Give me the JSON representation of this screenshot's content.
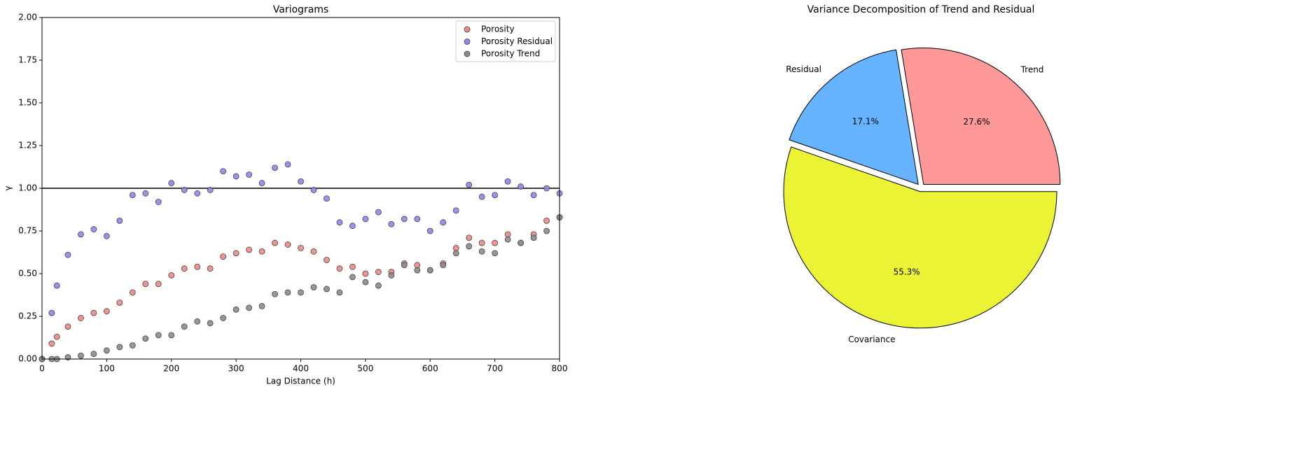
{
  "chart_data": [
    {
      "type": "scatter",
      "title": "Variograms",
      "x_label": "Lag Distance (h)",
      "y_label": "γ",
      "x": [
        0,
        15,
        23,
        40,
        60,
        80,
        100,
        120,
        140,
        160,
        180,
        200,
        220,
        240,
        260,
        280,
        300,
        320,
        340,
        360,
        380,
        400,
        420,
        440,
        460,
        480,
        500,
        520,
        540,
        560,
        580,
        600,
        620,
        640,
        660,
        680,
        700,
        720,
        740,
        760,
        780,
        800
      ],
      "series": [
        {
          "name": "Porosity",
          "color": "#ec8a84",
          "values": [
            0,
            0.09,
            0.13,
            0.19,
            0.24,
            0.27,
            0.28,
            0.33,
            0.39,
            0.44,
            0.44,
            0.49,
            0.53,
            0.54,
            0.53,
            0.6,
            0.62,
            0.64,
            0.63,
            0.68,
            0.67,
            0.65,
            0.63,
            0.58,
            0.53,
            0.54,
            0.5,
            0.51,
            0.51,
            0.56,
            0.55,
            0.52,
            0.56,
            0.65,
            0.71,
            0.68,
            0.68,
            0.73,
            0.68,
            0.73,
            0.81,
            0.83
          ]
        },
        {
          "name": "Porosity Residual",
          "color": "#8a8ae8",
          "values": [
            0,
            0.27,
            0.43,
            0.61,
            0.73,
            0.76,
            0.72,
            0.81,
            0.96,
            0.97,
            0.92,
            1.03,
            0.99,
            0.97,
            0.99,
            1.1,
            1.07,
            1.08,
            1.03,
            1.12,
            1.14,
            1.04,
            0.99,
            0.94,
            0.8,
            0.78,
            0.82,
            0.86,
            0.79,
            0.82,
            0.82,
            0.75,
            0.8,
            0.87,
            1.02,
            0.95,
            0.96,
            1.04,
            1.01,
            0.96,
            1.0,
            0.97
          ]
        },
        {
          "name": "Porosity Trend",
          "color": "#8c8c8c",
          "values": [
            0,
            0.0,
            0.0,
            0.01,
            0.02,
            0.03,
            0.05,
            0.07,
            0.08,
            0.12,
            0.14,
            0.14,
            0.19,
            0.22,
            0.21,
            0.24,
            0.29,
            0.3,
            0.31,
            0.38,
            0.39,
            0.39,
            0.42,
            0.41,
            0.39,
            0.48,
            0.45,
            0.43,
            0.49,
            0.55,
            0.52,
            0.52,
            0.55,
            0.62,
            0.66,
            0.63,
            0.62,
            0.7,
            0.68,
            0.71,
            0.75,
            0.83
          ]
        }
      ],
      "reference_line": 1,
      "xlim": [
        0,
        800
      ],
      "xticks": [
        0,
        100,
        200,
        300,
        400,
        500,
        600,
        700,
        800
      ],
      "ylim": [
        0,
        2
      ],
      "yticks": [
        {
          "value": 0,
          "label": "0.00"
        },
        {
          "value": 0.25,
          "label": "0.25"
        },
        {
          "value": 0.5,
          "label": "0.50"
        },
        {
          "value": 0.75,
          "label": "0.75"
        },
        {
          "value": 1,
          "label": "1.00"
        },
        {
          "value": 1.25,
          "label": "1.25"
        },
        {
          "value": 1.5,
          "label": "1.50"
        },
        {
          "value": 1.75,
          "label": "1.75"
        },
        {
          "value": 2,
          "label": "2.00"
        }
      ],
      "legend": "upper right"
    },
    {
      "type": "pie",
      "title": "Variance Decomposition of Trend and Residual",
      "categories": [
        "Trend",
        "Residual",
        "Covariance"
      ],
      "values": [
        27.6,
        17.1,
        55.3
      ],
      "value_labels": [
        "27.6%",
        "17.1%",
        "55.3%"
      ],
      "colors": [
        "#ff9999",
        "#66b3ff",
        "#ebf335"
      ],
      "explode": [
        0.03,
        0.03,
        0.03
      ]
    }
  ]
}
